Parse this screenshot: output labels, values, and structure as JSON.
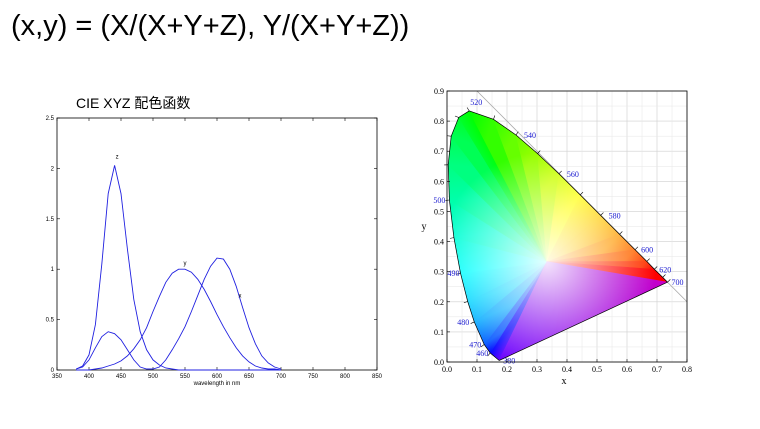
{
  "slide": {
    "title": "(x,y) = (X/(X+Y+Z), Y/(X+Y+Z))",
    "left_caption": "CIE XYZ 配色函数"
  },
  "chart_data": [
    {
      "type": "line",
      "xlabel": "wavelength in nm",
      "ylabel": "",
      "xlim": [
        350,
        850
      ],
      "ylim": [
        0,
        2.5
      ],
      "x_ticks": [
        350,
        400,
        450,
        500,
        550,
        600,
        650,
        700,
        750,
        800,
        850
      ],
      "y_ticks": [
        0,
        0.5,
        1,
        1.5,
        2,
        2.5
      ],
      "y_tick_labels": [
        "0",
        "0.5",
        "1",
        "1.5",
        "2",
        "2.5"
      ],
      "grid": false,
      "line_color": "#2020e0",
      "x": [
        380,
        390,
        400,
        410,
        420,
        430,
        440,
        450,
        460,
        470,
        480,
        490,
        500,
        510,
        520,
        530,
        540,
        550,
        560,
        570,
        580,
        590,
        600,
        610,
        620,
        630,
        640,
        650,
        660,
        670,
        680,
        690,
        700
      ],
      "series": [
        {
          "name": "z",
          "label_at": [
            444,
            2.1
          ],
          "values": [
            0.01,
            0.04,
            0.15,
            0.45,
            1.05,
            1.75,
            2.03,
            1.75,
            1.2,
            0.7,
            0.38,
            0.2,
            0.1,
            0.05,
            0.02,
            0.01,
            0,
            0,
            0,
            0,
            0,
            0,
            0,
            0,
            0,
            0,
            0,
            0,
            0,
            0,
            0,
            0,
            0
          ]
        },
        {
          "name": "y",
          "label_at": [
            550,
            1.04
          ],
          "values": [
            0,
            0,
            0,
            0.01,
            0.02,
            0.04,
            0.06,
            0.09,
            0.14,
            0.21,
            0.3,
            0.42,
            0.58,
            0.73,
            0.87,
            0.96,
            1.0,
            1.0,
            0.97,
            0.9,
            0.8,
            0.68,
            0.55,
            0.43,
            0.32,
            0.22,
            0.14,
            0.08,
            0.04,
            0.02,
            0.01,
            0.01,
            0
          ]
        },
        {
          "name": "x",
          "label_at": [
            636,
            0.72
          ],
          "values": [
            0.01,
            0.03,
            0.1,
            0.22,
            0.33,
            0.38,
            0.36,
            0.3,
            0.2,
            0.1,
            0.03,
            0.01,
            0.01,
            0.03,
            0.1,
            0.2,
            0.31,
            0.43,
            0.58,
            0.74,
            0.9,
            1.03,
            1.11,
            1.1,
            1.0,
            0.83,
            0.62,
            0.42,
            0.26,
            0.14,
            0.07,
            0.03,
            0.01
          ]
        }
      ]
    },
    {
      "type": "scatter",
      "subtype": "chromaticity-diagram",
      "xlabel": "x",
      "ylabel": "y",
      "xlim": [
        0,
        0.8
      ],
      "ylim": [
        0,
        0.9
      ],
      "x_ticks": [
        0.0,
        0.1,
        0.2,
        0.3,
        0.4,
        0.5,
        0.6,
        0.7,
        0.8
      ],
      "x_tick_labels": [
        "0.0",
        "0.1",
        "0.2",
        "0.3",
        "0.4",
        "0.5",
        "0.6",
        "0.7",
        "0.8"
      ],
      "y_ticks": [
        0.0,
        0.1,
        0.2,
        0.3,
        0.4,
        0.5,
        0.6,
        0.7,
        0.8,
        0.9
      ],
      "y_tick_labels": [
        "0.0",
        "0.1",
        "0.2",
        "0.3",
        "0.4",
        "0.5",
        "0.6",
        "0.7",
        "0.8",
        "0.9"
      ],
      "grid": true,
      "locus": [
        {
          "nm": 380,
          "x": 0.174,
          "y": 0.005
        },
        {
          "nm": 460,
          "x": 0.144,
          "y": 0.03
        },
        {
          "nm": 470,
          "x": 0.124,
          "y": 0.058
        },
        {
          "nm": 480,
          "x": 0.091,
          "y": 0.133
        },
        {
          "nm": 485,
          "x": 0.069,
          "y": 0.201
        },
        {
          "nm": 490,
          "x": 0.045,
          "y": 0.295
        },
        {
          "nm": 495,
          "x": 0.023,
          "y": 0.413
        },
        {
          "nm": 500,
          "x": 0.008,
          "y": 0.538
        },
        {
          "nm": 505,
          "x": 0.004,
          "y": 0.655
        },
        {
          "nm": 510,
          "x": 0.014,
          "y": 0.75
        },
        {
          "nm": 515,
          "x": 0.039,
          "y": 0.812
        },
        {
          "nm": 520,
          "x": 0.074,
          "y": 0.834
        },
        {
          "nm": 530,
          "x": 0.155,
          "y": 0.806
        },
        {
          "nm": 540,
          "x": 0.23,
          "y": 0.754
        },
        {
          "nm": 550,
          "x": 0.302,
          "y": 0.692
        },
        {
          "nm": 560,
          "x": 0.373,
          "y": 0.625
        },
        {
          "nm": 570,
          "x": 0.444,
          "y": 0.555
        },
        {
          "nm": 580,
          "x": 0.512,
          "y": 0.487
        },
        {
          "nm": 590,
          "x": 0.575,
          "y": 0.424
        },
        {
          "nm": 600,
          "x": 0.627,
          "y": 0.373
        },
        {
          "nm": 610,
          "x": 0.666,
          "y": 0.334
        },
        {
          "nm": 620,
          "x": 0.691,
          "y": 0.308
        },
        {
          "nm": 640,
          "x": 0.719,
          "y": 0.281
        },
        {
          "nm": 700,
          "x": 0.735,
          "y": 0.265
        }
      ],
      "wavelength_labels": [
        {
          "text": "380",
          "nm": 380,
          "x": 0.174,
          "y": 0.005,
          "anchor": "start",
          "dx": 4,
          "dy": 3
        },
        {
          "text": "460",
          "nm": 460,
          "x": 0.144,
          "y": 0.03,
          "anchor": "end",
          "dx": -2,
          "dy": 3
        },
        {
          "text": "470",
          "nm": 470,
          "x": 0.124,
          "y": 0.058,
          "anchor": "end",
          "dx": -3,
          "dy": 3
        },
        {
          "text": "480",
          "nm": 480,
          "x": 0.091,
          "y": 0.133,
          "anchor": "end",
          "dx": -5,
          "dy": 3
        },
        {
          "text": "490",
          "nm": 490,
          "x": 0.045,
          "y": 0.295,
          "anchor": "end",
          "dx": -1,
          "dy": 3
        },
        {
          "text": "500",
          "nm": 500,
          "x": 0.008,
          "y": 0.538,
          "anchor": "end",
          "dx": -4,
          "dy": 3
        },
        {
          "text": "520",
          "nm": 520,
          "x": 0.074,
          "y": 0.834,
          "anchor": "start",
          "dx": 1,
          "dy": -6
        },
        {
          "text": "540",
          "nm": 540,
          "x": 0.23,
          "y": 0.754,
          "anchor": "start",
          "dx": 8,
          "dy": 3
        },
        {
          "text": "560",
          "nm": 560,
          "x": 0.373,
          "y": 0.625,
          "anchor": "start",
          "dx": 8,
          "dy": 3
        },
        {
          "text": "580",
          "nm": 580,
          "x": 0.512,
          "y": 0.487,
          "anchor": "start",
          "dx": 8,
          "dy": 3
        },
        {
          "text": "600",
          "nm": 600,
          "x": 0.627,
          "y": 0.373,
          "anchor": "start",
          "dx": 6,
          "dy": 3
        },
        {
          "text": "620",
          "nm": 620,
          "x": 0.691,
          "y": 0.308,
          "anchor": "start",
          "dx": 5,
          "dy": 3
        },
        {
          "text": "700",
          "nm": 700,
          "x": 0.735,
          "y": 0.265,
          "anchor": "start",
          "dx": 4,
          "dy": 3
        }
      ],
      "colors": {
        "red": "#ff0000",
        "green": "#00ff00",
        "blue": "#0000ff",
        "white": "#ffffff"
      }
    }
  ]
}
